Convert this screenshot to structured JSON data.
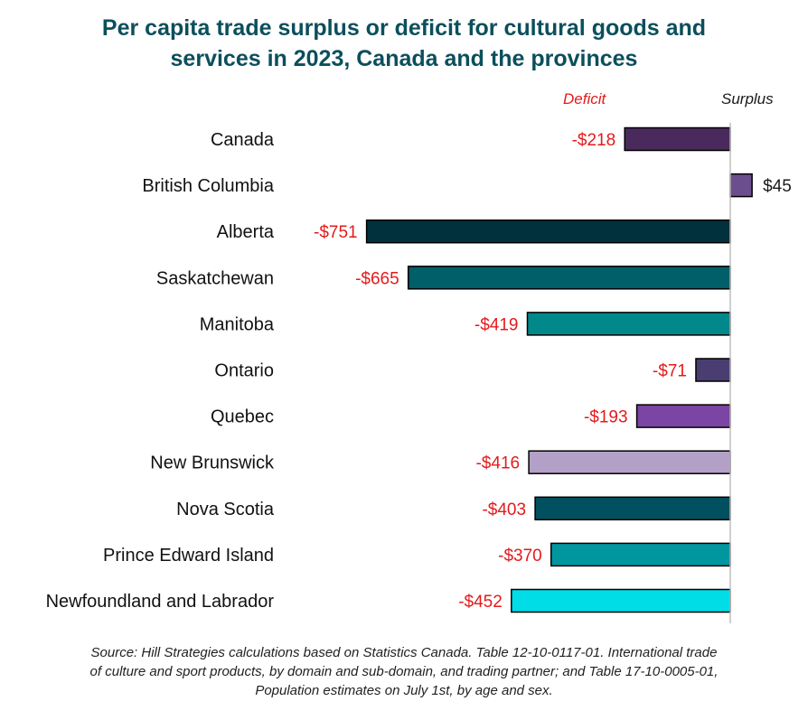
{
  "title_lines": [
    "Per capita trade surplus or deficit for cultural goods and",
    "services in 2023, Canada and the provinces"
  ],
  "side_labels": {
    "deficit": "Deficit",
    "surplus": "Surplus"
  },
  "colors": {
    "title": "#0b4f5c",
    "negative_label": "#e41a1c",
    "positive_label": "#1a1a1a",
    "axis": "#bfbfbf"
  },
  "chart_data": {
    "type": "bar",
    "orientation": "horizontal",
    "categories": [
      "Canada",
      "British Columbia",
      "Alberta",
      "Saskatchewan",
      "Manitoba",
      "Ontario",
      "Quebec",
      "New Brunswick",
      "Nova Scotia",
      "Prince Edward Island",
      "Newfoundland and Labrador"
    ],
    "values": [
      -218,
      45,
      -751,
      -665,
      -419,
      -71,
      -193,
      -416,
      -403,
      -370,
      -452
    ],
    "data_labels": [
      "-$218",
      "$45",
      "-$751",
      "-$665",
      "-$419",
      "-$71",
      "-$193",
      "-$416",
      "-$403",
      "-$370",
      "-$452"
    ],
    "bar_colors": [
      "#4a2a5c",
      "#6b4e8e",
      "#00313d",
      "#005f68",
      "#00888a",
      "#4a3d72",
      "#7a45a3",
      "#b3a0c7",
      "#00505f",
      "#0096a0",
      "#00dde6"
    ],
    "xlim": [
      -800,
      60
    ],
    "grid": false,
    "legend": "none"
  },
  "source_lines": [
    "Source:  Hill Strategies calculations  based on Statistics Canada. Table 12-10-0117-01. International trade",
    "of culture and sport products, by domain and sub-domain, and trading partner; and Table 17-10-0005-01,",
    "Population estimates on July 1st, by age and sex."
  ]
}
